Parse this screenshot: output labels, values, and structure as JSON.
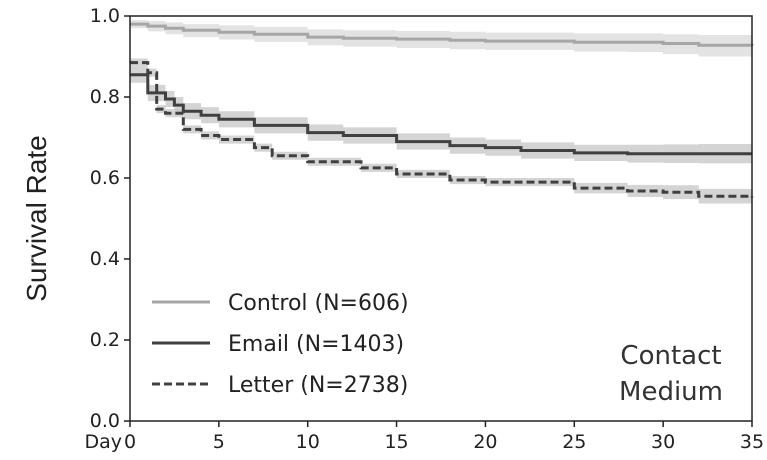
{
  "chart_data": {
    "type": "line",
    "title": "",
    "xlabel": "",
    "ylabel": "Survival Rate",
    "x_prefix_label": "Day",
    "xlim": [
      0,
      35
    ],
    "ylim": [
      0,
      1
    ],
    "x_ticks": [
      "0",
      "5",
      "10",
      "15",
      "20",
      "25",
      "30",
      "35"
    ],
    "y_ticks": [
      "0.0",
      "0.2",
      "0.4",
      "0.6",
      "0.8",
      "1.0"
    ],
    "grid": false,
    "legend_position": "lower-left",
    "annotation": [
      "Contact",
      "Medium"
    ],
    "series": [
      {
        "name": "Control (N=606)",
        "color": "#a6a6a6",
        "band_color": "#d9d9d9",
        "style": "solid",
        "x": [
          0,
          1,
          2,
          3,
          5,
          7,
          10,
          12,
          15,
          18,
          20,
          25,
          28,
          30,
          32,
          35
        ],
        "y": [
          0.98,
          0.975,
          0.97,
          0.965,
          0.96,
          0.955,
          0.948,
          0.945,
          0.943,
          0.94,
          0.938,
          0.935,
          0.935,
          0.932,
          0.928,
          0.927
        ],
        "lower": [
          0.97,
          0.962,
          0.955,
          0.948,
          0.942,
          0.936,
          0.928,
          0.924,
          0.921,
          0.918,
          0.916,
          0.912,
          0.911,
          0.906,
          0.9,
          0.898
        ],
        "upper": [
          0.99,
          0.988,
          0.984,
          0.98,
          0.977,
          0.973,
          0.967,
          0.965,
          0.963,
          0.961,
          0.959,
          0.957,
          0.957,
          0.955,
          0.953,
          0.953
        ]
      },
      {
        "name": "Email (N=1403)",
        "color": "#404040",
        "band_color": "#c6c6c6",
        "style": "solid",
        "x": [
          0,
          1,
          2,
          2.5,
          3,
          4,
          5,
          7,
          10,
          12,
          15,
          18,
          20,
          22,
          25,
          28,
          30,
          32,
          35
        ],
        "y": [
          0.855,
          0.81,
          0.795,
          0.78,
          0.765,
          0.755,
          0.745,
          0.73,
          0.712,
          0.705,
          0.69,
          0.68,
          0.675,
          0.668,
          0.662,
          0.66,
          0.66,
          0.66,
          0.66
        ],
        "lower": [
          0.835,
          0.79,
          0.775,
          0.76,
          0.745,
          0.735,
          0.725,
          0.71,
          0.692,
          0.685,
          0.67,
          0.66,
          0.655,
          0.648,
          0.642,
          0.638,
          0.637,
          0.636,
          0.635
        ],
        "upper": [
          0.875,
          0.83,
          0.815,
          0.8,
          0.785,
          0.775,
          0.765,
          0.75,
          0.732,
          0.725,
          0.71,
          0.7,
          0.695,
          0.688,
          0.682,
          0.682,
          0.683,
          0.684,
          0.685
        ]
      },
      {
        "name": "Letter (N=2738)",
        "color": "#404040",
        "band_color": "#c6c6c6",
        "style": "dashed",
        "x": [
          0,
          1,
          1.5,
          2,
          3,
          4,
          5,
          7,
          8,
          10,
          13,
          15,
          18,
          20,
          25,
          28,
          30,
          32,
          35
        ],
        "y": [
          0.885,
          0.86,
          0.77,
          0.76,
          0.72,
          0.705,
          0.695,
          0.675,
          0.655,
          0.64,
          0.625,
          0.61,
          0.595,
          0.59,
          0.575,
          0.568,
          0.565,
          0.555,
          0.552
        ],
        "lower": [
          0.875,
          0.85,
          0.76,
          0.75,
          0.71,
          0.695,
          0.685,
          0.665,
          0.645,
          0.63,
          0.615,
          0.6,
          0.585,
          0.58,
          0.562,
          0.553,
          0.548,
          0.537,
          0.532
        ],
        "upper": [
          0.895,
          0.87,
          0.78,
          0.77,
          0.73,
          0.715,
          0.705,
          0.685,
          0.665,
          0.65,
          0.635,
          0.62,
          0.605,
          0.6,
          0.588,
          0.583,
          0.582,
          0.573,
          0.572
        ]
      }
    ]
  }
}
